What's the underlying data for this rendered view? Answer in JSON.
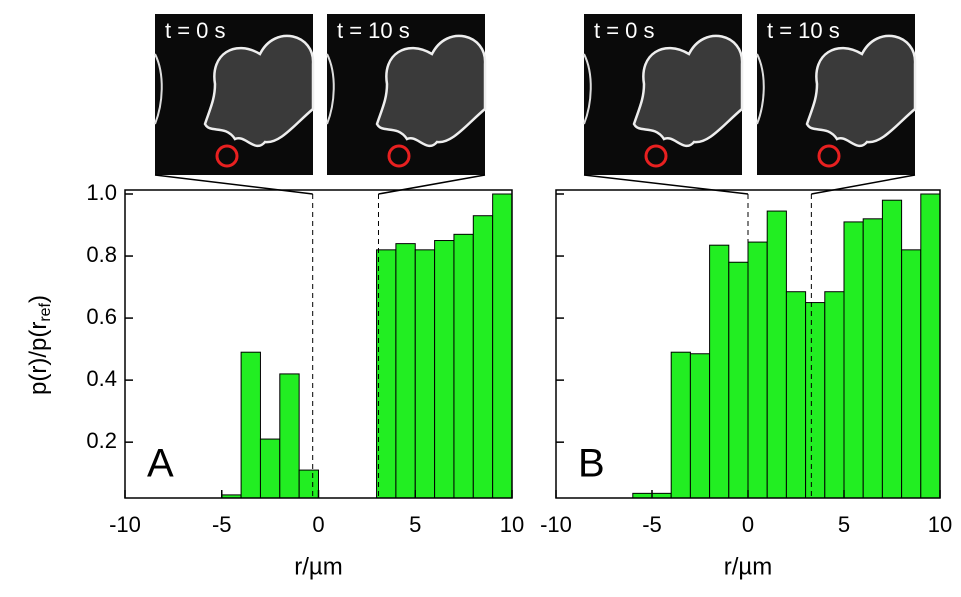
{
  "chart_data": [
    {
      "type": "histogram",
      "panel": "A",
      "insets": [
        "t = 0 s",
        "t = 10 s"
      ],
      "bins": [
        -10,
        -9,
        -8,
        -7,
        -6,
        -5,
        -4,
        -3,
        -2,
        -1,
        0,
        1,
        2,
        3,
        4,
        5,
        6,
        7,
        8,
        9,
        10
      ],
      "values": [
        0,
        0,
        0,
        0,
        0,
        0.03,
        0.49,
        0.21,
        0.42,
        0.11,
        0,
        0,
        0,
        0.82,
        0.84,
        0.82,
        0.85,
        0.87,
        0.93,
        1.0
      ],
      "color": "#22ee22",
      "xlim": [
        -10,
        10
      ],
      "ylim": [
        0.02,
        1.0
      ],
      "xticks": [
        -10,
        -5,
        0,
        5,
        10
      ],
      "yticks": [
        0.2,
        0.4,
        0.6,
        0.8,
        {
          "value": 1,
          "label": "1.0"
        }
      ],
      "show_ytick_labels": true,
      "vlines": [
        -0.3,
        3.1
      ],
      "xlabel": "r/µm",
      "ylabel": {
        "main": "p(r)/p(r",
        "sub": "ref",
        "end": ")"
      }
    },
    {
      "type": "histogram",
      "panel": "B",
      "insets": [
        "t = 0 s",
        "t = 10 s"
      ],
      "bins": [
        -10,
        -9,
        -8,
        -7,
        -6,
        -5,
        -4,
        -3,
        -2,
        -1,
        0,
        1,
        2,
        3,
        4,
        5,
        6,
        7,
        8,
        9,
        10
      ],
      "values": [
        0,
        0,
        0,
        0.02,
        0.035,
        0.035,
        0.49,
        0.485,
        0.835,
        0.78,
        0.845,
        0.945,
        0.685,
        0.65,
        0.685,
        0.91,
        0.92,
        0.98,
        0.82,
        1.0
      ],
      "color": "#22ee22",
      "xlim": [
        -10,
        10
      ],
      "ylim": [
        0.02,
        1.0
      ],
      "xticks": [
        -10,
        -5,
        0,
        5,
        10
      ],
      "yticks": [
        0.2,
        0.4,
        0.6,
        0.8,
        1
      ],
      "show_ytick_labels": false,
      "vlines": [
        0,
        3.3
      ],
      "xlabel": "r/µm"
    }
  ]
}
